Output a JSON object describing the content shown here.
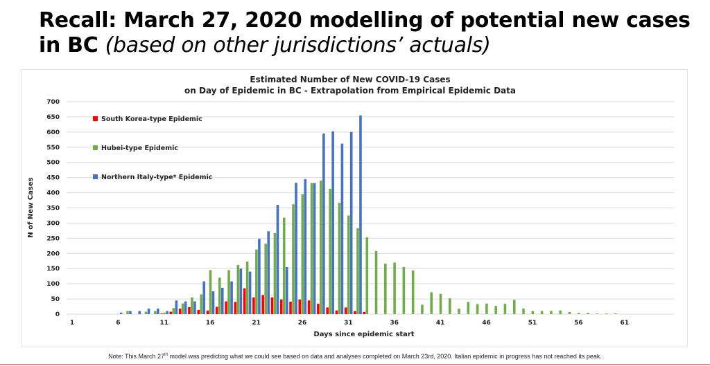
{
  "slide": {
    "title_main": "Recall:  March 27, 2020 modelling of potential new cases in BC",
    "title_sub": "(based on other jurisdictions’ actuals)",
    "note_pre": "Note: This March 27",
    "note_sup": "th",
    "note_post": " model was predicting what we could see based on data and analyses completed on March 23rd, 2020. Italian epidemic in progress has not reached its peak."
  },
  "chart_data": {
    "type": "bar",
    "title_line1": "Estimated Number of New COVID-19 Cases",
    "title_line2": "on Day of Epidemic in BC  - Extrapolation from Empirical Epidemic Data",
    "xlabel": "Days since epidemic start",
    "ylabel": "N of New Cases",
    "ylim": [
      0,
      700
    ],
    "yticks": [
      0,
      50,
      100,
      150,
      200,
      250,
      300,
      350,
      400,
      450,
      500,
      550,
      600,
      650,
      700
    ],
    "xticks": [
      1,
      6,
      11,
      16,
      21,
      26,
      31,
      36,
      41,
      46,
      51,
      56,
      61
    ],
    "grid": true,
    "legend_position": "top-left",
    "day_start": 1,
    "series": [
      {
        "name": "South Korea-type Epidemic",
        "color": "#ff0000",
        "values": [
          0,
          0,
          0,
          0,
          0,
          0,
          0,
          0,
          0,
          0,
          2,
          8,
          18,
          23,
          14,
          12,
          24,
          42,
          40,
          85,
          55,
          63,
          55,
          48,
          41,
          48,
          45,
          34,
          22,
          12,
          22,
          10,
          7,
          0,
          0,
          0,
          0,
          0,
          0,
          0,
          0,
          0,
          0,
          0,
          0,
          0,
          0,
          0,
          0,
          0,
          0,
          0,
          0,
          0,
          0,
          0,
          0,
          0,
          0,
          0,
          0,
          0,
          0,
          0,
          0
        ]
      },
      {
        "name": "Hubei-type Epidemic",
        "color": "#70ad47",
        "values": [
          0,
          0,
          0,
          0,
          0,
          0,
          10,
          0,
          8,
          10,
          5,
          20,
          35,
          55,
          65,
          145,
          120,
          145,
          162,
          173,
          213,
          232,
          267,
          318,
          362,
          395,
          432,
          440,
          413,
          367,
          325,
          283,
          253,
          208,
          166,
          170,
          155,
          144,
          31,
          72,
          67,
          52,
          18,
          40,
          33,
          35,
          27,
          34,
          47,
          18,
          10,
          10,
          10,
          12,
          7,
          4,
          4,
          2,
          2,
          2,
          0,
          0,
          0,
          0,
          0
        ]
      },
      {
        "name": "Northern Italy-type* Epidemic",
        "color": "#4472c4",
        "values": [
          0,
          0,
          0,
          0,
          0,
          5,
          10,
          10,
          18,
          18,
          10,
          45,
          42,
          42,
          108,
          75,
          87,
          108,
          150,
          140,
          248,
          273,
          360,
          155,
          433,
          445,
          432,
          595,
          602,
          562,
          600,
          655,
          0,
          0,
          0,
          0,
          0,
          0,
          0,
          0,
          0,
          0,
          0,
          0,
          0,
          0,
          0,
          0,
          0,
          0,
          0,
          0,
          0,
          0,
          0,
          0,
          0,
          0,
          0,
          0,
          0,
          0,
          0,
          0,
          0
        ]
      }
    ]
  }
}
